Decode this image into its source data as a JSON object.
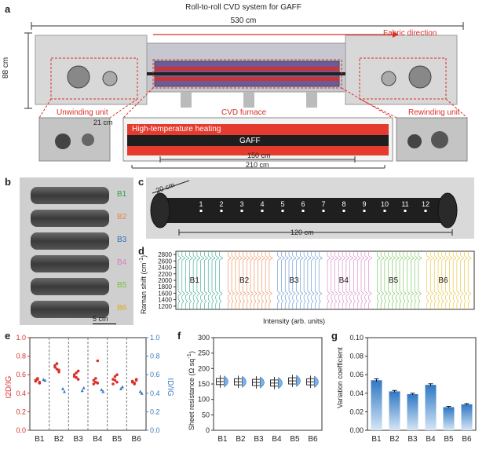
{
  "panel_a": {
    "label": "a",
    "title": "Roll-to-roll CVD system for GAFF",
    "width_dim": "530 cm",
    "height_dim": "88 cm",
    "fabric_direction": "Fabric direction",
    "unwinding": "Unwinding unit",
    "cvd_furnace": "CVD furnace",
    "rewinding": "Rewinding unit",
    "dim_21": "21 cm",
    "heating": "High-temperature heating",
    "gaff": "GAFF",
    "dim_150": "150 cm",
    "dim_210": "210 cm"
  },
  "panel_b": {
    "label": "b",
    "rolls": [
      {
        "name": "B1",
        "color": "#2ea34a"
      },
      {
        "name": "B2",
        "color": "#e8834a"
      },
      {
        "name": "B3",
        "color": "#2f6fb5"
      },
      {
        "name": "B4",
        "color": "#d77fc0"
      },
      {
        "name": "B5",
        "color": "#7bbf3a"
      },
      {
        "name": "B6",
        "color": "#e0a820"
      }
    ],
    "scale": "5 cm"
  },
  "panel_c": {
    "label": "c",
    "width_dim": "20 cm",
    "length_dim": "120 cm",
    "points": [
      "1",
      "2",
      "3",
      "4",
      "5",
      "6",
      "7",
      "8",
      "9",
      "10",
      "11",
      "12"
    ]
  },
  "panel_d": {
    "label": "d",
    "ylabel_main": "Raman shift (cm",
    "ylabel_sup": "-1",
    "ylabel_close": ")",
    "xlabel": "Intensity (arb. units)",
    "yticks": [
      "2800",
      "2600",
      "2400",
      "2200",
      "2000",
      "1800",
      "1600",
      "1400",
      "1200"
    ],
    "groups": [
      {
        "name": "B1",
        "color": "#2ea38f"
      },
      {
        "name": "B2",
        "color": "#e8834a"
      },
      {
        "name": "B3",
        "color": "#5b8fd0"
      },
      {
        "name": "B4",
        "color": "#d77fc0"
      },
      {
        "name": "B5",
        "color": "#6cc04a"
      },
      {
        "name": "B6",
        "color": "#e6c030"
      }
    ]
  },
  "panel_e": {
    "label": "e",
    "left_ylabel": "I2D/IG",
    "right_ylabel": "ID/IG",
    "left_ticks": [
      "1.0",
      "0.8",
      "0.6",
      "0.4",
      "0.2",
      "0.0"
    ],
    "right_ticks": [
      "1.0",
      "0.8",
      "0.6",
      "0.4",
      "0.2",
      "0.0"
    ],
    "left_color": "#d9302a",
    "right_color": "#3b7bbf"
  },
  "panel_f": {
    "label": "f",
    "ylabel_main": "Sheet resistance (Ω sq",
    "ylabel_sup": "-1",
    "ylabel_close": ")",
    "yticks": [
      "300",
      "250",
      "200",
      "150",
      "100",
      "50",
      "0"
    ]
  },
  "panel_g": {
    "label": "g",
    "ylabel": "Variation coefficient",
    "yticks": [
      "0.10",
      "0.08",
      "0.06",
      "0.04",
      "0.02",
      "0.00"
    ]
  },
  "chart_data": [
    {
      "type": "scatter",
      "panel": "e",
      "categories": [
        "B1",
        "B2",
        "B3",
        "B4",
        "B5",
        "B6"
      ],
      "ylim": [
        0,
        1.0
      ],
      "series": [
        {
          "name": "I2D/IG",
          "axis": "left",
          "values": [
            [
              0.53,
              0.55,
              0.52,
              0.54,
              0.56,
              0.51
            ],
            [
              0.68,
              0.72,
              0.65,
              0.7,
              0.66,
              0.63
            ],
            [
              0.58,
              0.62,
              0.55,
              0.6,
              0.57,
              0.64
            ],
            [
              0.54,
              0.52,
              0.75,
              0.5,
              0.56,
              0.51
            ],
            [
              0.55,
              0.58,
              0.52,
              0.5,
              0.54,
              0.6
            ],
            [
              0.53,
              0.5,
              0.55,
              0.52,
              0.51,
              0.54
            ]
          ]
        },
        {
          "name": "ID/IG",
          "axis": "right",
          "values": [
            [
              0.55,
              0.54
            ],
            [
              0.45,
              0.42
            ],
            [
              0.43,
              0.46
            ],
            [
              0.44,
              0.42
            ],
            [
              0.45,
              0.47
            ],
            [
              0.42,
              0.4
            ]
          ]
        }
      ]
    },
    {
      "type": "box",
      "panel": "f",
      "categories": [
        "B1",
        "B2",
        "B3",
        "B4",
        "B5",
        "B6"
      ],
      "ylim": [
        0,
        300
      ],
      "values": [
        158,
        157,
        155,
        153,
        160,
        157
      ]
    },
    {
      "type": "bar",
      "panel": "g",
      "categories": [
        "B1",
        "B2",
        "B3",
        "B4",
        "B5",
        "B6"
      ],
      "ylim": [
        0,
        0.1
      ],
      "values": [
        0.054,
        0.042,
        0.039,
        0.049,
        0.025,
        0.028
      ],
      "errors": [
        0.0015,
        0.001,
        0.001,
        0.0012,
        0.0008,
        0.0008
      ]
    }
  ]
}
